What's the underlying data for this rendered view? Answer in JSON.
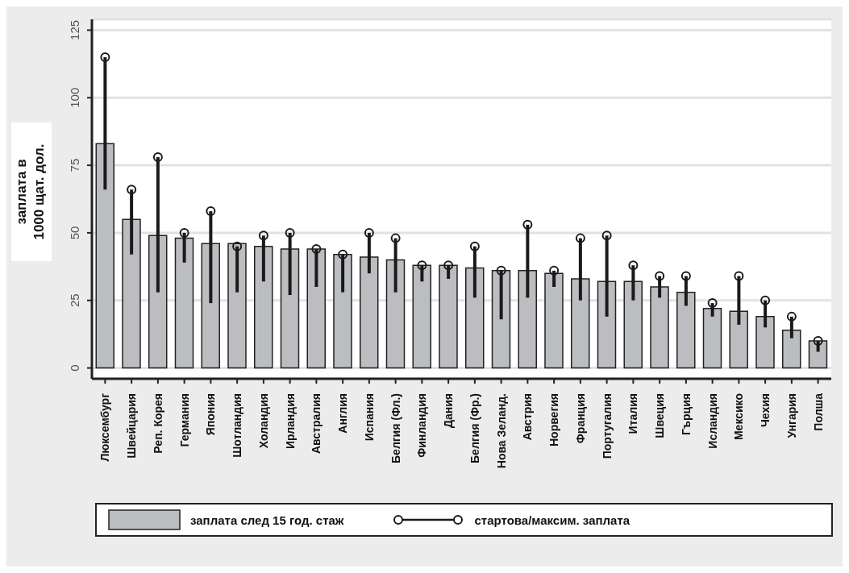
{
  "chart_data": {
    "type": "bar",
    "ylabel": "заплата в\n1000 щат. дол.",
    "categories": [
      "Люксембург",
      "Швейцария",
      "Реп. Корея",
      "Германия",
      "Япония",
      "Шотландия",
      "Холандия",
      "Ирландия",
      "Австралия",
      "Англия",
      "Испания",
      "Белгия (Фл.)",
      "Финландия",
      "Дания",
      "Белгия (Фр.)",
      "Нова Зеланд.",
      "Австрия",
      "Норвегия",
      "Франция",
      "Португалия",
      "Италия",
      "Швеция",
      "Гърция",
      "Исландия",
      "Мексико",
      "Чехия",
      "Унгария",
      "Полша"
    ],
    "series": [
      {
        "name": "заплата след 15 год. стаж",
        "color": "#bcbdc0",
        "values": [
          83,
          55,
          49,
          48,
          46,
          46,
          45,
          44,
          44,
          42,
          41,
          40,
          38,
          38,
          37,
          36,
          36,
          35,
          33,
          32,
          32,
          30,
          28,
          22,
          21,
          19,
          14,
          10
        ]
      },
      {
        "type": "scatter",
        "name": "стартова/максим. заплата",
        "color": "#1a1a1a",
        "values": [
          115,
          66,
          78,
          50,
          58,
          45,
          49,
          50,
          44,
          42,
          50,
          48,
          38,
          38,
          45,
          36,
          53,
          36,
          48,
          49,
          38,
          34,
          34,
          24,
          34,
          25,
          19,
          10
        ],
        "errors": [
          [
            66,
            115
          ],
          [
            42,
            66
          ],
          [
            28,
            78
          ],
          [
            39,
            50
          ],
          [
            24,
            58
          ],
          [
            28,
            45
          ],
          [
            32,
            49
          ],
          [
            27,
            50
          ],
          [
            30,
            44
          ],
          [
            28,
            42
          ],
          [
            35,
            50
          ],
          [
            28,
            48
          ],
          [
            32,
            38
          ],
          [
            33,
            38
          ],
          [
            26,
            45
          ],
          [
            18,
            36
          ],
          [
            26,
            53
          ],
          [
            30,
            36
          ],
          [
            25,
            48
          ],
          [
            19,
            49
          ],
          [
            25,
            38
          ],
          [
            26,
            34
          ],
          [
            23,
            34
          ],
          [
            19,
            24
          ],
          [
            16,
            34
          ],
          [
            15,
            25
          ],
          [
            11,
            19
          ],
          [
            6,
            10
          ]
        ]
      }
    ],
    "ylim": [
      -4,
      129
    ],
    "yticks": [
      0,
      25,
      50,
      75,
      100,
      125
    ],
    "grid": "y",
    "legend": "bottom",
    "marker": "circle"
  }
}
